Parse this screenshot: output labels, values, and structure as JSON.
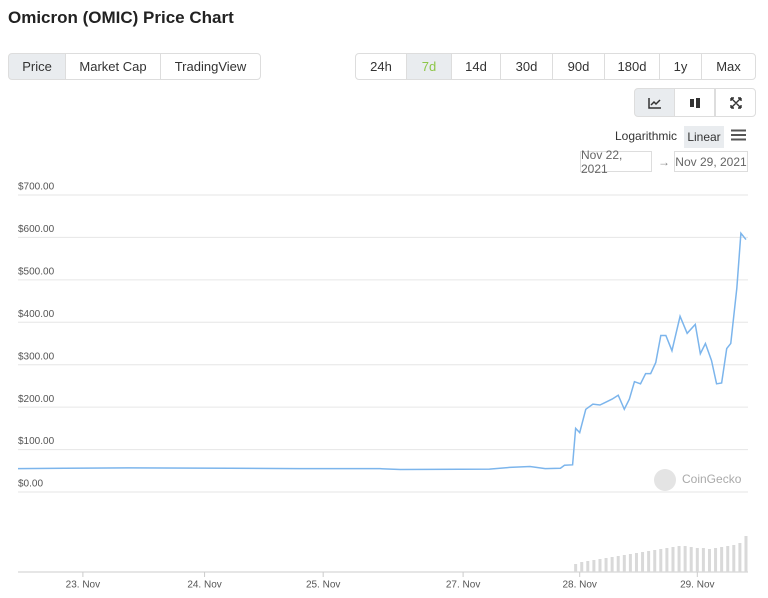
{
  "header": {
    "title": "Omicron (OMIC) Price Chart"
  },
  "tabs": [
    "Price",
    "Market Cap",
    "TradingView"
  ],
  "ranges": [
    "24h",
    "7d",
    "14d",
    "30d",
    "90d",
    "180d",
    "1y",
    "Max"
  ],
  "scale": [
    "Logarithmic",
    "Linear"
  ],
  "date_range": {
    "from": "Nov 22, 2021",
    "separator": "→",
    "to": "Nov 29, 2021"
  },
  "watermark": "CoinGecko",
  "chart_data": {
    "type": "line",
    "series": [
      {
        "color": "#7cb5ec",
        "x": [
          22.5,
          22.96,
          23.6,
          24.59,
          25.28,
          26.07,
          26.27,
          27.15,
          27.35,
          27.55,
          27.7,
          27.85,
          27.89,
          27.97,
          28.0,
          28.04,
          28.1,
          28.17,
          28.24,
          28.3,
          28.36,
          28.42,
          28.48,
          28.53,
          28.58,
          28.64,
          28.69,
          28.74,
          28.79,
          28.84,
          28.89,
          28.95,
          29.03,
          29.1,
          29.18,
          29.23,
          29.28,
          29.34,
          29.39,
          29.44,
          29.49,
          29.53,
          29.59,
          29.63,
          29.68
        ],
        "values": [
          55,
          56,
          57,
          56,
          55,
          55,
          53,
          54,
          58,
          60,
          55,
          56,
          63,
          64,
          150,
          140,
          195,
          207,
          205,
          212,
          219,
          228,
          195,
          219,
          260,
          255,
          279,
          279,
          305,
          369,
          369,
          333,
          414,
          374,
          395,
          326,
          350,
          310,
          255,
          257,
          338,
          350,
          481,
          610,
          595
        ]
      }
    ],
    "volume": {
      "color": "#d9d9d9",
      "x": [
        28.0,
        28.06,
        28.12,
        28.18,
        28.24,
        28.3,
        28.36,
        28.42,
        28.48,
        28.54,
        28.6,
        28.66,
        28.72,
        28.78,
        28.84,
        28.9,
        28.96,
        29.02,
        29.08,
        29.14,
        29.2,
        29.26,
        29.32,
        29.38,
        29.44,
        29.5,
        29.56,
        29.62,
        29.68
      ],
      "values": [
        8,
        10,
        11,
        12,
        13,
        14,
        15,
        16,
        17,
        18,
        19,
        20,
        21,
        22,
        23,
        24,
        25,
        26,
        26,
        25,
        24,
        24,
        23,
        24,
        25,
        26,
        27,
        29,
        36
      ]
    },
    "xlim": [
      22.5,
      29.7
    ],
    "xticks": [
      {
        "value": 23.14,
        "label": "23. Nov"
      },
      {
        "value": 24.34,
        "label": "24. Nov"
      },
      {
        "value": 25.51,
        "label": "25. Nov"
      },
      {
        "value": 26.89,
        "label": "27. Nov"
      },
      {
        "value": 28.04,
        "label": "28. Nov"
      },
      {
        "value": 29.2,
        "label": "29. Nov"
      }
    ],
    "ylim": [
      0,
      700
    ],
    "yticks": [
      {
        "value": 0,
        "label": "$0.00"
      },
      {
        "value": 100,
        "label": "$100.00"
      },
      {
        "value": 200,
        "label": "$200.00"
      },
      {
        "value": 300,
        "label": "$300.00"
      },
      {
        "value": 400,
        "label": "$400.00"
      },
      {
        "value": 500,
        "label": "$500.00"
      },
      {
        "value": 600,
        "label": "$600.00"
      },
      {
        "value": 700,
        "label": "$700.00"
      }
    ],
    "grid": true
  }
}
